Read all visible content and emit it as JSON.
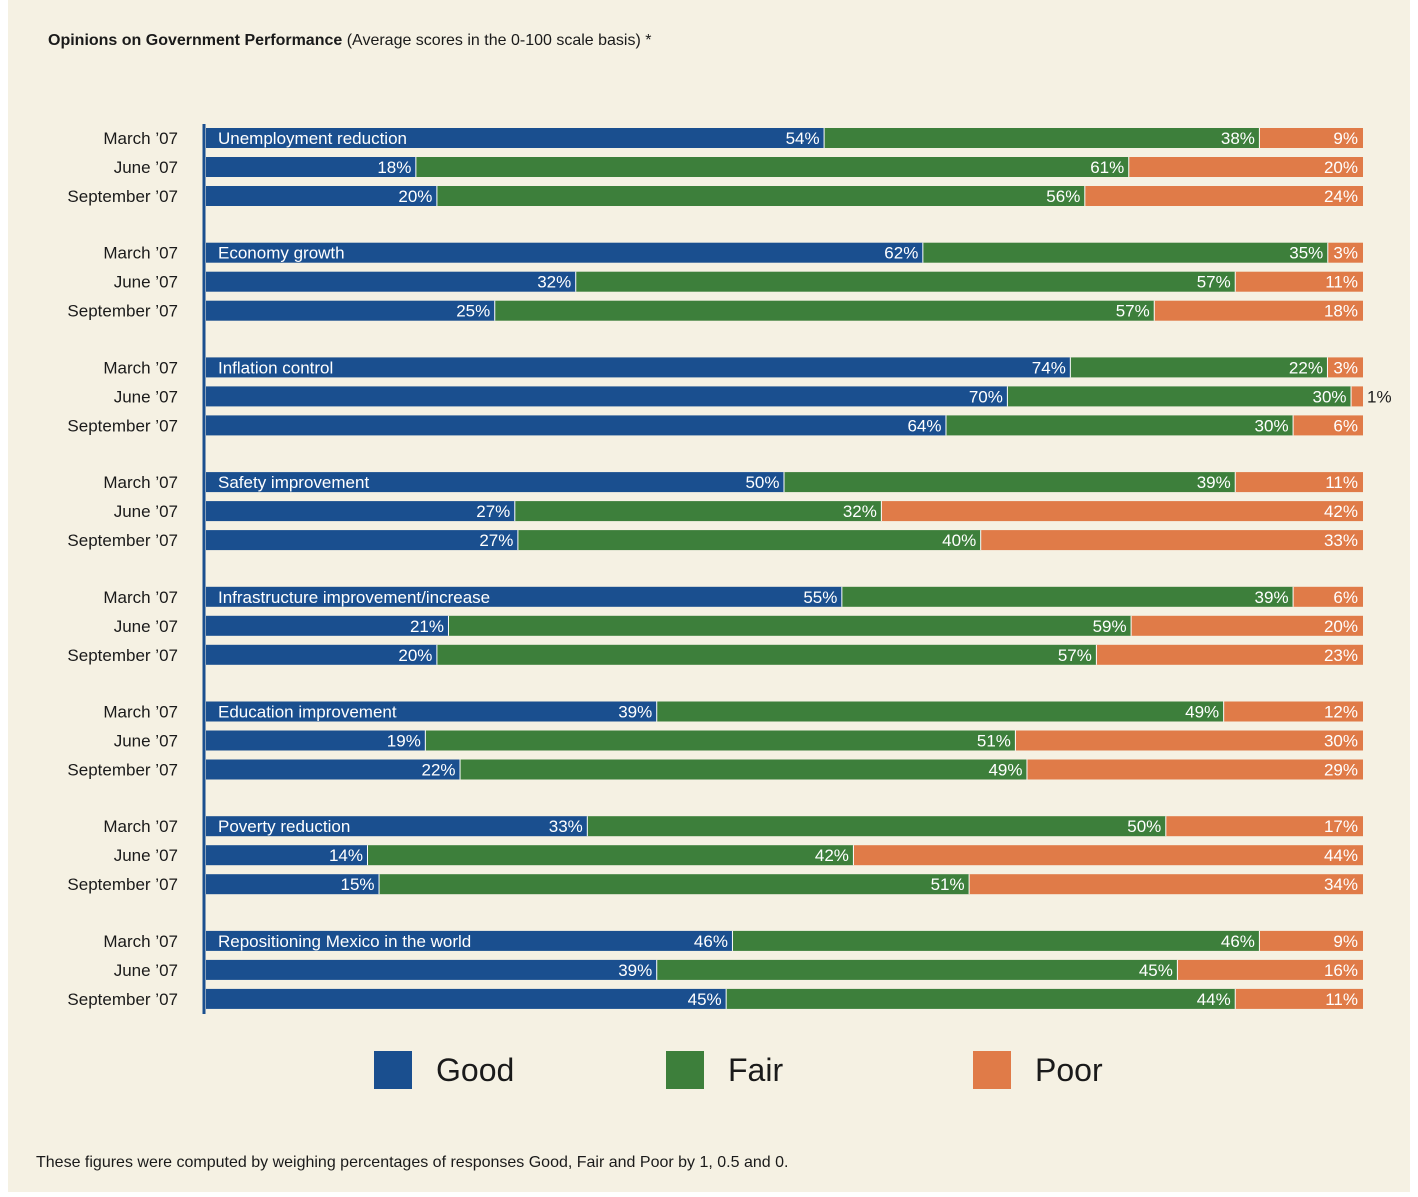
{
  "title": {
    "bold": "Opinions on Government Performance",
    "normal": " (Average scores in the 0-100 scale basis) *"
  },
  "footnote": "These figures were computed by weighing percentages of responses Good, Fair and Poor by 1, 0.5 and 0.",
  "chart_data": {
    "type": "bar",
    "orientation": "horizontal",
    "stacked": true,
    "percent_scale": true,
    "series": [
      {
        "name": "Good",
        "color": "#1a4f8f"
      },
      {
        "name": "Fair",
        "color": "#3d7f3b"
      },
      {
        "name": "Poor",
        "color": "#e07b48"
      }
    ],
    "periods": [
      "March ’07",
      "June ’07",
      "September ’07"
    ],
    "groups": [
      {
        "category": "Unemployment reduction",
        "values": [
          [
            54,
            38,
            9
          ],
          [
            18,
            61,
            20
          ],
          [
            20,
            56,
            24
          ]
        ]
      },
      {
        "category": "Economy growth",
        "values": [
          [
            62,
            35,
            3
          ],
          [
            32,
            57,
            11
          ],
          [
            25,
            57,
            18
          ]
        ]
      },
      {
        "category": "Inflation control",
        "values": [
          [
            74,
            22,
            3
          ],
          [
            70,
            30,
            1
          ],
          [
            64,
            30,
            6
          ]
        ]
      },
      {
        "category": "Safety improvement",
        "values": [
          [
            50,
            39,
            11
          ],
          [
            27,
            32,
            42
          ],
          [
            27,
            40,
            33
          ]
        ]
      },
      {
        "category": "Infrastructure improvement/increase",
        "values": [
          [
            55,
            39,
            6
          ],
          [
            21,
            59,
            20
          ],
          [
            20,
            57,
            23
          ]
        ]
      },
      {
        "category": "Education improvement",
        "values": [
          [
            39,
            49,
            12
          ],
          [
            19,
            51,
            30
          ],
          [
            22,
            49,
            29
          ]
        ]
      },
      {
        "category": "Poverty reduction",
        "values": [
          [
            33,
            50,
            17
          ],
          [
            14,
            42,
            44
          ],
          [
            15,
            51,
            34
          ]
        ]
      },
      {
        "category": "Repositioning Mexico in the world",
        "values": [
          [
            46,
            46,
            9
          ],
          [
            39,
            45,
            16
          ],
          [
            45,
            44,
            11
          ]
        ]
      }
    ],
    "legend": {
      "position": "bottom",
      "items": [
        "Good",
        "Fair",
        "Poor"
      ]
    }
  }
}
